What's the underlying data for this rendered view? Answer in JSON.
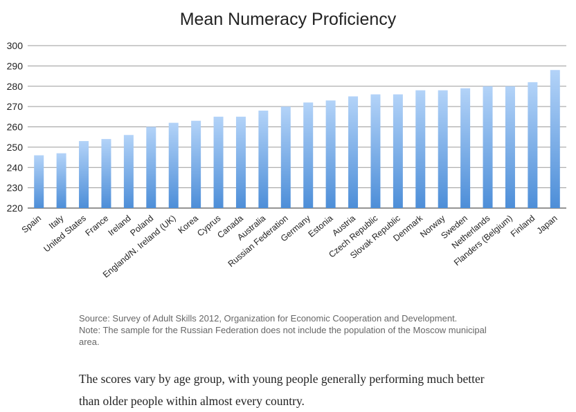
{
  "chart_data": {
    "type": "bar",
    "title": "Mean Numeracy Proficiency",
    "xlabel": "",
    "ylabel": "",
    "ylim": [
      220,
      300
    ],
    "yticks": [
      220,
      230,
      240,
      250,
      260,
      270,
      280,
      290,
      300
    ],
    "grid": true,
    "legend": "none",
    "bar_color_top": "#b3d3f8",
    "bar_color_bottom": "#4d8ed8",
    "categories": [
      "Spain",
      "Italy",
      "United States",
      "France",
      "Ireland",
      "Poland",
      "England/N. Ireland (UK)",
      "Korea",
      "Cyprus",
      "Canada",
      "Australia",
      "Russian Federation",
      "Germany",
      "Estonia",
      "Austria",
      "Czech Republic",
      "Slovak Republic",
      "Denmark",
      "Norway",
      "Sweden",
      "Netherlands",
      "Flanders (Belgium)",
      "Finland",
      "Japan"
    ],
    "values": [
      246,
      247,
      253,
      254,
      256,
      260,
      262,
      263,
      265,
      265,
      268,
      270,
      272,
      273,
      275,
      276,
      276,
      278,
      278,
      279,
      280,
      280,
      282,
      288
    ]
  },
  "source_note": "Source: Survey of Adult Skills 2012, Organization for Economic Cooperation and Development.",
  "sample_note": "Note: The sample for the Russian Federation does not include the population of the Moscow municipal area.",
  "caption": "The scores vary by age group, with young people generally performing much better than older people within almost every country."
}
